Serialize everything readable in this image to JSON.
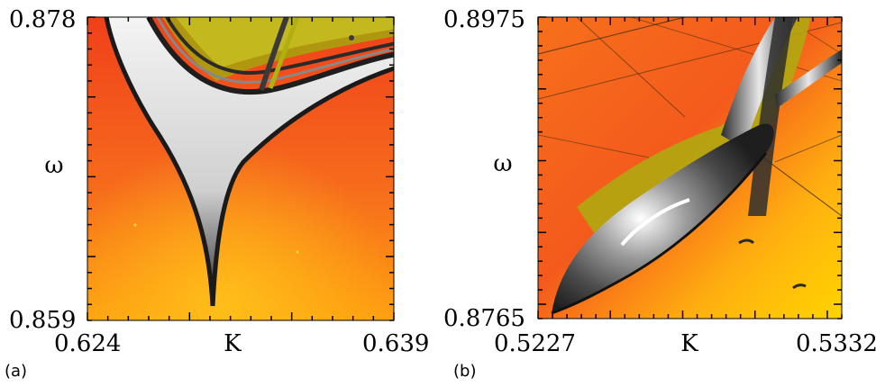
{
  "chart_data": [
    {
      "type": "heatmap",
      "panel_label": "(a)",
      "xlabel": "K",
      "ylabel": "ω",
      "xlim": [
        0.624,
        0.639
      ],
      "ylim": [
        0.859,
        0.878
      ],
      "x_tick_labels": [
        "0.624",
        "0.639"
      ],
      "y_tick_labels": [
        "0.878",
        "0.859"
      ],
      "colors": {
        "background_low": "#f24a1a",
        "background_high": "#ffb000",
        "stable_region": "#e0e0e0",
        "boundary": "#2a2a2a",
        "transition": "#b8b000"
      }
    },
    {
      "type": "heatmap",
      "panel_label": "(b)",
      "xlabel": "K",
      "ylabel": "ω",
      "xlim": [
        0.5227,
        0.5332
      ],
      "ylim": [
        0.8765,
        0.8975
      ],
      "x_tick_labels": [
        "0.5227",
        "0.5332"
      ],
      "y_tick_labels": [
        "0.8975",
        "0.8765"
      ],
      "colors": {
        "background_low": "#f24a1a",
        "background_high": "#ffd200",
        "stable_region": "#e0e0e0",
        "boundary": "#2a2a2a",
        "transition": "#b8b000"
      }
    }
  ]
}
